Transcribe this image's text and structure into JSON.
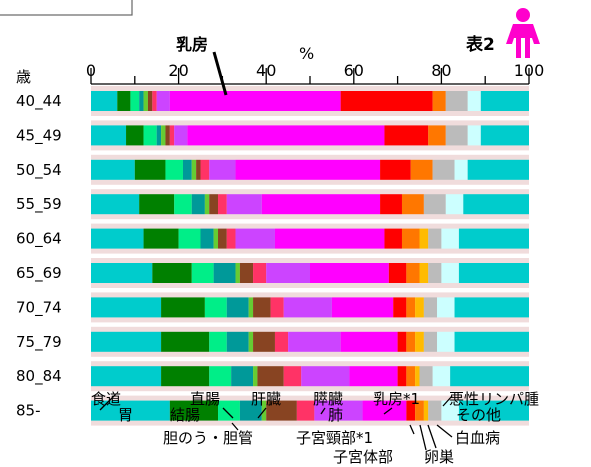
{
  "chart_data": {
    "type": "bar",
    "stacked": true,
    "orientation": "horizontal",
    "title": "表2",
    "xlabel": "%",
    "ylabel": "歳",
    "xlim": [
      0,
      100
    ],
    "x_ticks": [
      "0",
      "20",
      "40",
      "60",
      "80",
      "100"
    ],
    "categories": [
      "40_44",
      "45_49",
      "50_54",
      "55_59",
      "60_64",
      "65_69",
      "70_74",
      "75_79",
      "80_84",
      "85-"
    ],
    "series": [
      {
        "name": "食道",
        "color": "#00cccc",
        "values": [
          6,
          8,
          10,
          11,
          12,
          14,
          16,
          16,
          16,
          18
        ]
      },
      {
        "name": "胃",
        "color": "#008000",
        "values": [
          3,
          4,
          7,
          8,
          8,
          9,
          10,
          11,
          11,
          11
        ]
      },
      {
        "name": "結腸",
        "color": "#00ee88",
        "values": [
          2,
          3,
          4,
          4,
          5,
          5,
          5,
          4,
          5,
          5
        ]
      },
      {
        "name": "直腸",
        "color": "#009999",
        "values": [
          1,
          1,
          2,
          3,
          3,
          5,
          5,
          5,
          5,
          5
        ]
      },
      {
        "name": "肝臓",
        "color": "#66cc33",
        "values": [
          1,
          1,
          1,
          1,
          1,
          1,
          1,
          1,
          1,
          1
        ]
      },
      {
        "name": "胆のう・胆管",
        "color": "#884422",
        "values": [
          1,
          1,
          1,
          2,
          2,
          3,
          4,
          5,
          6,
          7
        ]
      },
      {
        "name": "膵臓",
        "color": "#ff3366",
        "values": [
          1,
          1,
          2,
          2,
          2,
          3,
          3,
          3,
          4,
          4
        ]
      },
      {
        "name": "肺",
        "color": "#cc44ff",
        "values": [
          3,
          3,
          6,
          8,
          9,
          10,
          11,
          12,
          11,
          11
        ]
      },
      {
        "name": "乳房",
        "color": "#ff00ff",
        "values": [
          39,
          45,
          33,
          27,
          25,
          18,
          14,
          13,
          11,
          10
        ]
      },
      {
        "name": "子宮頸部",
        "color": "#ff0000",
        "values": [
          21,
          10,
          7,
          5,
          4,
          4,
          3,
          2,
          2,
          2
        ]
      },
      {
        "name": "子宮体部",
        "color": "#ff7700",
        "values": [
          3,
          4,
          5,
          5,
          4,
          3,
          2,
          2,
          2,
          2
        ]
      },
      {
        "name": "卵巣",
        "color": "#ffbb00",
        "values": [
          0,
          0,
          0,
          0,
          2,
          2,
          2,
          2,
          1,
          1
        ]
      },
      {
        "name": "悪性リンパ腫",
        "color": "#bbbbbb",
        "values": [
          5,
          5,
          5,
          5,
          3,
          3,
          3,
          3,
          3,
          3
        ]
      },
      {
        "name": "白血病",
        "color": "#ccffff",
        "values": [
          3,
          3,
          3,
          4,
          4,
          4,
          4,
          4,
          4,
          4
        ]
      },
      {
        "name": "その他",
        "color": "#00cccc",
        "values": [
          11,
          11,
          14,
          15,
          16,
          16,
          17,
          17,
          18,
          16
        ]
      }
    ]
  },
  "annotations": {
    "breast_label": "乳房",
    "table_label": "表2",
    "percent_label": "%",
    "age_label": "歳"
  },
  "legend_labels": {
    "esophagus": "食道",
    "stomach": "胃",
    "rectum": "直腸",
    "colon": "結腸",
    "liver": "肝臓",
    "gallbladder": "胆のう・胆管",
    "pancreas": "膵臓",
    "lung": "肺",
    "breast": "乳房*1",
    "cervix": "子宮頸部*1",
    "corpus": "子宮体部",
    "ovary": "卵巣",
    "lymphoma": "悪性リンパ腫",
    "other": "その他",
    "leukemia": "白血病"
  },
  "colors": {
    "row_band": "#f0dcdc",
    "female_icon": "#ff00cc",
    "pointer": "#000000"
  }
}
